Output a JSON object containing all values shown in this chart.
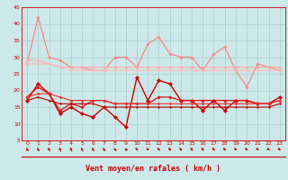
{
  "xlabel": "Vent moyen/en rafales ( km/h )",
  "xlim": [
    -0.5,
    23.5
  ],
  "ylim": [
    5,
    45
  ],
  "yticks": [
    5,
    10,
    15,
    20,
    25,
    30,
    35,
    40,
    45
  ],
  "xticks": [
    0,
    1,
    2,
    3,
    4,
    5,
    6,
    7,
    8,
    9,
    10,
    11,
    12,
    13,
    14,
    15,
    16,
    17,
    18,
    19,
    20,
    21,
    22,
    23
  ],
  "bg_color": "#cce8e8",
  "grid_color": "#aacccc",
  "series": [
    {
      "color": "#ff8888",
      "lw": 0.9,
      "ms": 2.0,
      "y": [
        28,
        42,
        30,
        29,
        27,
        27,
        26,
        26,
        30,
        30,
        27,
        34,
        36,
        31,
        30,
        30,
        26,
        31,
        33,
        26,
        21,
        28,
        27,
        26
      ]
    },
    {
      "color": "#ffaaaa",
      "lw": 0.8,
      "ms": 1.8,
      "y": [
        29,
        29,
        28,
        27,
        27,
        27,
        27,
        27,
        27,
        27,
        27,
        27,
        27,
        27,
        27,
        27,
        27,
        27,
        27,
        27,
        27,
        27,
        27,
        27
      ]
    },
    {
      "color": "#ffbbbb",
      "lw": 0.8,
      "ms": 1.8,
      "y": [
        28,
        28,
        28,
        27,
        26,
        26,
        26,
        26,
        26,
        26,
        26,
        26,
        26,
        26,
        26,
        26,
        26,
        26,
        26,
        26,
        26,
        26,
        26,
        26
      ]
    },
    {
      "color": "#cc0000",
      "lw": 1.0,
      "ms": 2.5,
      "y": [
        17,
        22,
        19,
        13,
        15,
        13,
        12,
        15,
        12,
        9,
        24,
        17,
        23,
        22,
        17,
        17,
        14,
        17,
        14,
        17,
        17,
        16,
        16,
        18
      ]
    },
    {
      "color": "#dd1111",
      "lw": 0.9,
      "ms": 2.0,
      "y": [
        18,
        21,
        19,
        14,
        16,
        15,
        17,
        17,
        16,
        16,
        16,
        16,
        18,
        18,
        17,
        17,
        17,
        17,
        17,
        17,
        17,
        16,
        16,
        17
      ]
    },
    {
      "color": "#ee3333",
      "lw": 0.8,
      "ms": 1.8,
      "y": [
        18,
        19,
        19,
        18,
        17,
        17,
        17,
        17,
        16,
        16,
        16,
        16,
        16,
        16,
        16,
        16,
        16,
        16,
        16,
        16,
        16,
        16,
        16,
        17
      ]
    },
    {
      "color": "#bb0000",
      "lw": 0.8,
      "ms": 1.5,
      "y": [
        17,
        18,
        17,
        16,
        16,
        16,
        16,
        15,
        15,
        15,
        15,
        15,
        15,
        15,
        15,
        15,
        15,
        15,
        15,
        15,
        15,
        15,
        15,
        16
      ]
    }
  ],
  "wind_angles_deg": [
    225,
    220,
    215,
    210,
    210,
    215,
    220,
    225,
    230,
    240,
    50,
    55,
    50,
    45,
    45,
    45,
    45,
    50,
    50,
    55,
    60,
    60,
    65,
    70
  ]
}
